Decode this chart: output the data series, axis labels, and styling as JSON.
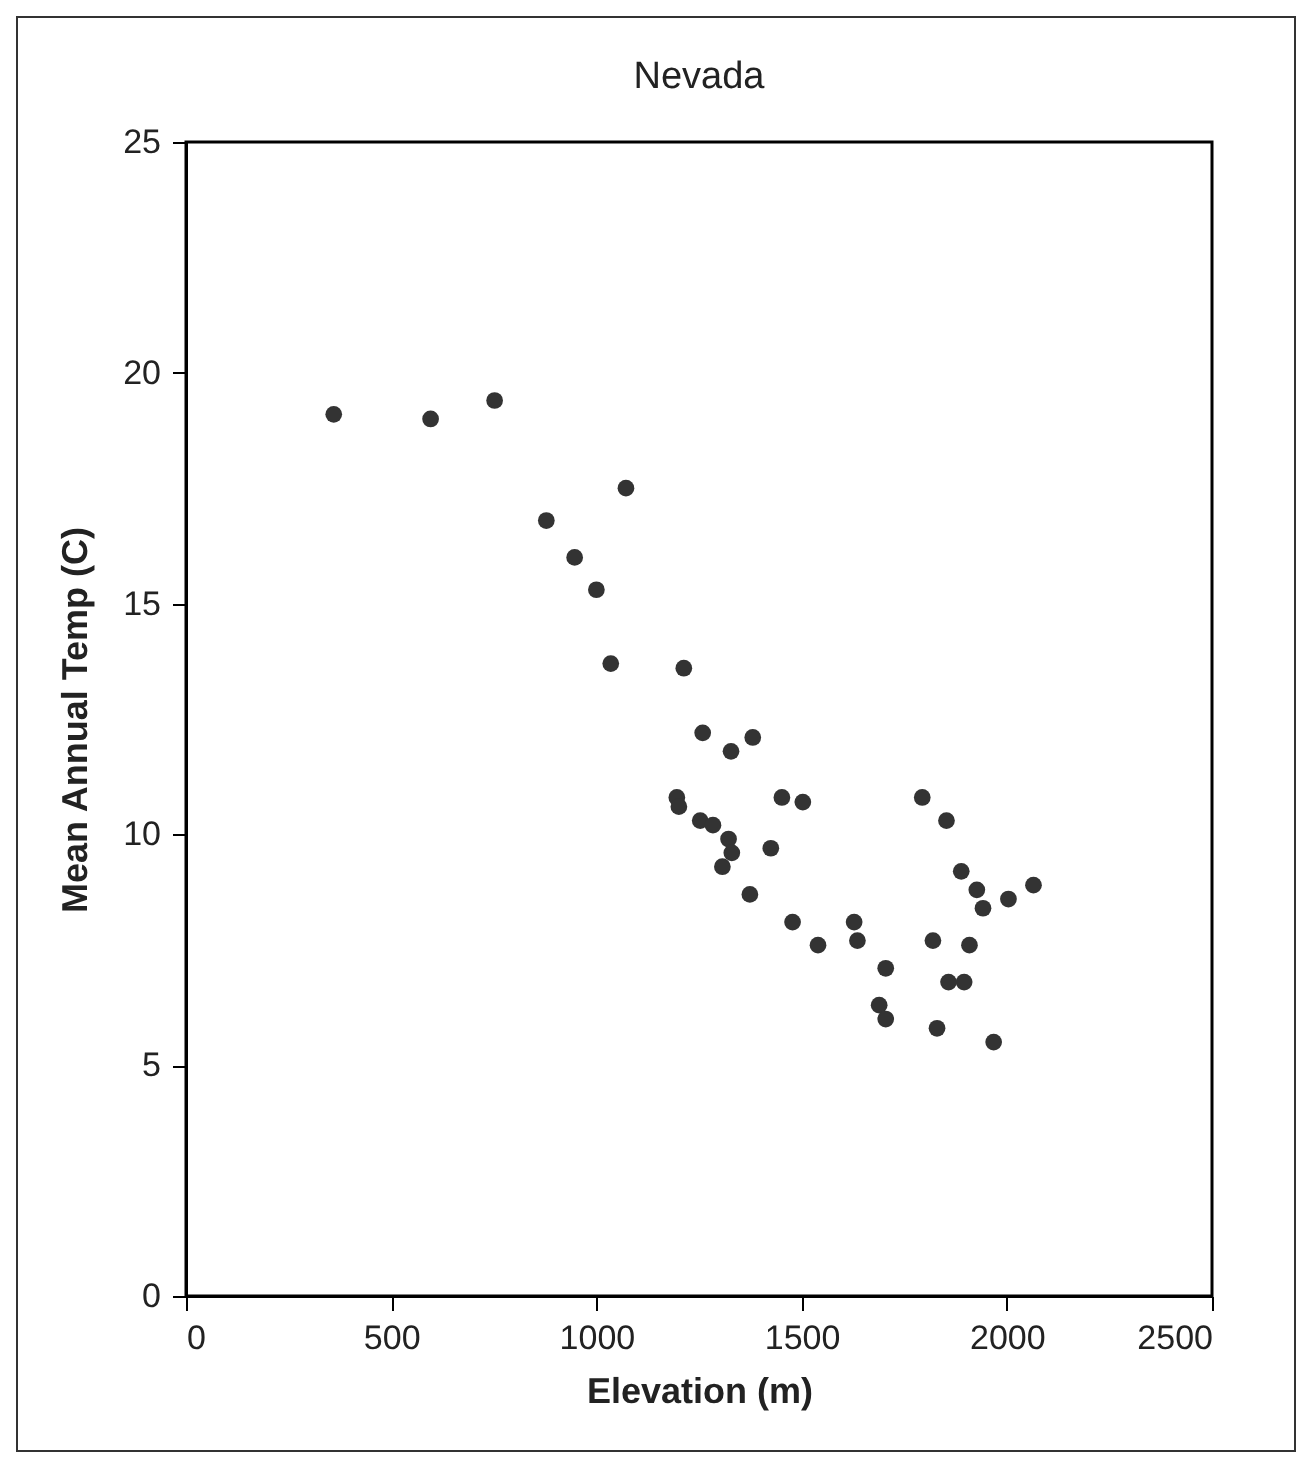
{
  "chart_data": {
    "type": "scatter",
    "title": "Nevada",
    "xlabel": "Elevation (m)",
    "ylabel": "Mean Annual Temp (C)",
    "x": [
      360,
      596,
      752,
      878,
      947,
      1000,
      1072,
      1035,
      1213,
      1259,
      1328,
      1381,
      1196,
      1201,
      1253,
      1284,
      1322,
      1330,
      1307,
      1425,
      1374,
      1452,
      1503,
      1478,
      1540,
      1628,
      1636,
      1705,
      1689,
      1705,
      1794,
      1853,
      1889,
      1927,
      1942,
      2004,
      2065,
      1909,
      1820,
      1896,
      1858,
      1830,
      1968
    ],
    "series": [
      {
        "color": "#333333",
        "values": [
          19.1,
          19.0,
          19.4,
          16.8,
          16.0,
          15.3,
          17.5,
          13.7,
          13.6,
          12.2,
          11.8,
          12.1,
          10.8,
          10.6,
          10.3,
          10.2,
          9.9,
          9.6,
          9.3,
          9.7,
          8.7,
          10.8,
          10.7,
          8.1,
          7.6,
          8.1,
          7.7,
          7.1,
          6.3,
          6.0,
          10.8,
          10.3,
          9.2,
          8.8,
          8.4,
          8.6,
          8.9,
          7.6,
          7.7,
          6.8,
          6.8,
          5.8,
          5.5
        ]
      }
    ],
    "xlim": [
      0,
      2500
    ],
    "xticks": [
      0,
      500,
      1000,
      1500,
      2000,
      2500
    ],
    "ylim": [
      0,
      25
    ],
    "yticks": [
      0,
      5,
      10,
      15,
      20,
      25
    ],
    "grid": false,
    "legend": false,
    "marker": "circle"
  }
}
